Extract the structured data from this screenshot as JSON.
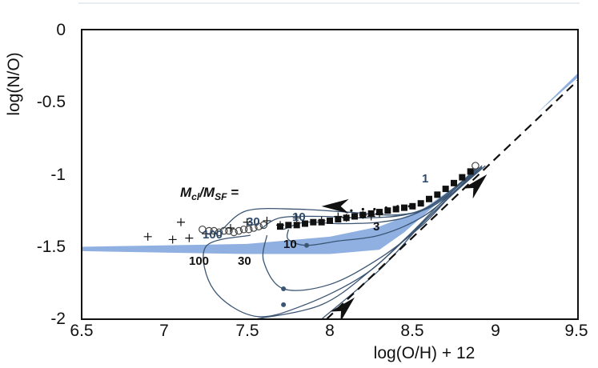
{
  "chart_data": {
    "type": "line",
    "xlabel": "log(O/H) + 12",
    "ylabel": "log(N/O)",
    "xlim": [
      6.5,
      9.5
    ],
    "ylim": [
      -2,
      0
    ],
    "xticks": [
      "6.5",
      "7",
      "7.5",
      "8",
      "8.5",
      "9",
      "9.5"
    ],
    "yticks": [
      "0",
      "-0.5",
      "-1",
      "-1.5",
      "-2"
    ],
    "grid": false,
    "colors": {
      "band": "#8fb0e0",
      "track": "#3b5573",
      "frame": "#111111",
      "marker": "#111111"
    },
    "band": {
      "upper": [
        [
          6.5,
          -1.5
        ],
        [
          7.5,
          -1.48
        ],
        [
          8.0,
          -1.43
        ],
        [
          8.3,
          -1.36
        ],
        [
          8.55,
          -1.25
        ],
        [
          8.8,
          -1.05
        ],
        [
          9.0,
          -0.85
        ],
        [
          9.25,
          -0.58
        ],
        [
          9.5,
          -0.3
        ]
      ],
      "lower": [
        [
          6.5,
          -1.53
        ],
        [
          7.5,
          -1.55
        ],
        [
          8.0,
          -1.55
        ],
        [
          8.3,
          -1.52
        ],
        [
          8.45,
          -1.4
        ],
        [
          8.6,
          -1.25
        ],
        [
          8.8,
          -1.05
        ],
        [
          9.0,
          -0.85
        ],
        [
          9.25,
          -0.58
        ],
        [
          9.5,
          -0.33
        ]
      ]
    },
    "dashed_line": [
      [
        7.98,
        -2.0
      ],
      [
        9.5,
        -0.35
      ]
    ],
    "tracks": [
      {
        "points": [
          [
            7.35,
            -1.38
          ],
          [
            7.5,
            -1.25
          ],
          [
            7.8,
            -1.24
          ],
          [
            8.1,
            -1.26
          ],
          [
            8.4,
            -1.28
          ],
          [
            8.6,
            -1.22
          ],
          [
            8.85,
            -1.0
          ]
        ]
      },
      {
        "points": [
          [
            7.58,
            -1.38
          ],
          [
            7.7,
            -1.3
          ],
          [
            7.95,
            -1.29
          ],
          [
            8.2,
            -1.3
          ],
          [
            8.45,
            -1.28
          ],
          [
            8.65,
            -1.2
          ],
          [
            8.88,
            -0.97
          ]
        ]
      },
      {
        "points": [
          [
            7.72,
            -1.38
          ],
          [
            7.85,
            -1.33
          ],
          [
            8.05,
            -1.34
          ],
          [
            8.3,
            -1.33
          ],
          [
            8.5,
            -1.28
          ],
          [
            8.7,
            -1.15
          ],
          [
            8.9,
            -0.95
          ]
        ]
      },
      {
        "points": [
          [
            7.52,
            -1.42
          ],
          [
            7.25,
            -1.5
          ],
          [
            7.3,
            -1.8
          ],
          [
            7.55,
            -1.98
          ],
          [
            7.85,
            -1.9
          ],
          [
            8.2,
            -1.7
          ],
          [
            8.45,
            -1.45
          ],
          [
            8.65,
            -1.22
          ],
          [
            8.88,
            -0.96
          ]
        ]
      },
      {
        "points": [
          [
            7.62,
            -1.42
          ],
          [
            7.6,
            -1.6
          ],
          [
            7.72,
            -1.79
          ],
          [
            8.0,
            -1.76
          ],
          [
            8.3,
            -1.58
          ],
          [
            8.55,
            -1.36
          ],
          [
            8.72,
            -1.16
          ],
          [
            8.9,
            -0.95
          ]
        ]
      },
      {
        "points": [
          [
            7.75,
            -1.38
          ],
          [
            7.75,
            -1.45
          ],
          [
            7.86,
            -1.49
          ],
          [
            8.05,
            -1.46
          ],
          [
            8.3,
            -1.42
          ],
          [
            8.55,
            -1.3
          ],
          [
            8.75,
            -1.12
          ],
          [
            8.92,
            -0.94
          ]
        ]
      },
      {
        "points": [
          [
            7.55,
            -2.0
          ],
          [
            7.95,
            -1.9
          ],
          [
            8.25,
            -1.66
          ],
          [
            8.5,
            -1.4
          ],
          [
            8.7,
            -1.18
          ],
          [
            8.92,
            -0.95
          ]
        ]
      },
      {
        "points": [
          [
            7.95,
            -2.0
          ],
          [
            8.3,
            -1.66
          ],
          [
            8.55,
            -1.35
          ],
          [
            8.75,
            -1.13
          ],
          [
            8.94,
            -0.94
          ]
        ]
      }
    ],
    "plus_markers": [
      [
        6.9,
        -1.43
      ],
      [
        7.05,
        -1.45
      ],
      [
        7.15,
        -1.44
      ],
      [
        7.1,
        -1.33
      ],
      [
        7.25,
        -1.41
      ],
      [
        7.4,
        -1.37
      ],
      [
        7.5,
        -1.33
      ],
      [
        7.62,
        -1.32
      ],
      [
        7.7,
        -1.35
      ],
      [
        7.8,
        -1.3
      ],
      [
        7.95,
        -1.32
      ],
      [
        8.05,
        -1.29
      ],
      [
        8.1,
        -1.3
      ],
      [
        8.2,
        -1.28
      ],
      [
        8.25,
        -1.29
      ],
      [
        8.3,
        -1.27
      ]
    ],
    "open_circles": [
      [
        7.23,
        -1.38
      ],
      [
        7.27,
        -1.39
      ],
      [
        7.3,
        -1.39
      ],
      [
        7.33,
        -1.4
      ],
      [
        7.36,
        -1.39
      ],
      [
        7.39,
        -1.39
      ],
      [
        7.42,
        -1.4
      ],
      [
        7.45,
        -1.39
      ],
      [
        7.48,
        -1.38
      ],
      [
        7.51,
        -1.38
      ],
      [
        7.54,
        -1.37
      ],
      [
        7.57,
        -1.36
      ],
      [
        7.6,
        -1.35
      ],
      [
        8.88,
        -0.94
      ]
    ],
    "filled_squares": [
      [
        7.7,
        -1.36
      ],
      [
        7.75,
        -1.35
      ],
      [
        7.8,
        -1.35
      ],
      [
        7.85,
        -1.34
      ],
      [
        7.9,
        -1.33
      ],
      [
        7.95,
        -1.33
      ],
      [
        8.0,
        -1.32
      ],
      [
        8.05,
        -1.31
      ],
      [
        8.1,
        -1.3
      ],
      [
        8.15,
        -1.29
      ],
      [
        8.2,
        -1.28
      ],
      [
        8.25,
        -1.27
      ],
      [
        8.3,
        -1.26
      ],
      [
        8.35,
        -1.25
      ],
      [
        8.4,
        -1.24
      ],
      [
        8.45,
        -1.23
      ],
      [
        8.5,
        -1.22
      ],
      [
        8.55,
        -1.2
      ],
      [
        8.6,
        -1.17
      ],
      [
        8.65,
        -1.14
      ],
      [
        8.7,
        -1.1
      ],
      [
        8.75,
        -1.06
      ],
      [
        8.8,
        -1.02
      ],
      [
        8.85,
        -0.98
      ]
    ],
    "small_dots": [
      [
        8.13,
        -1.25
      ],
      [
        8.2,
        -1.24
      ],
      [
        8.27,
        -1.24
      ],
      [
        8.34,
        -1.23
      ],
      [
        8.41,
        -1.22
      ],
      [
        8.48,
        -1.22
      ],
      [
        8.55,
        -1.2
      ]
    ],
    "track_dots": [
      [
        7.86,
        -1.49
      ],
      [
        7.72,
        -1.79
      ],
      [
        7.72,
        -1.9
      ]
    ],
    "arrows": [
      {
        "tip": [
          7.95,
          -1.22
        ],
        "dir": "left"
      },
      {
        "tip": [
          8.95,
          -1.0
        ],
        "dir": "up-right"
      },
      {
        "tip": [
          8.15,
          -1.85
        ],
        "dir": "up-right"
      }
    ],
    "annotations": {
      "mass_ratio": "M",
      "mass_ratio_cl": "cl",
      "mass_ratio_mid": "/M",
      "mass_ratio_sf": "SF",
      "mass_ratio_eq": " =",
      "label_1": "1",
      "label_3": "3",
      "label_10": "10",
      "label_30": "30",
      "label_100": "100",
      "label_upper_10": "10",
      "label_upper_30": "30",
      "label_upper_100": "100"
    }
  }
}
